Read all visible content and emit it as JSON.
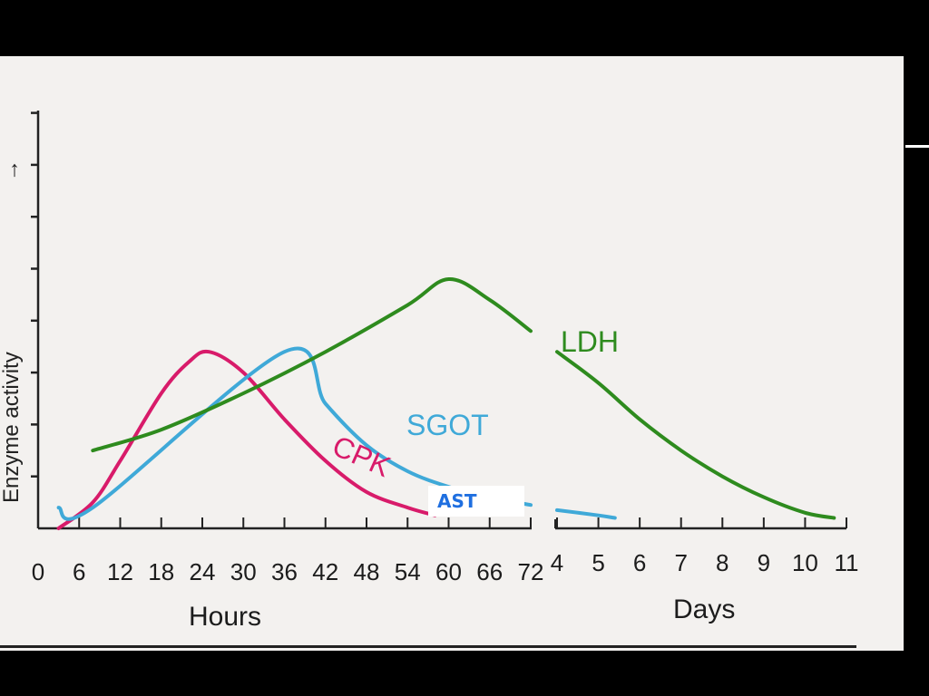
{
  "chart_data": {
    "type": "line",
    "ylabel": "Enzyme activity",
    "y_axis_arrow": "→",
    "hours_axis": {
      "label": "Hours",
      "ticks": [
        "0",
        "6",
        "12",
        "18",
        "24",
        "30",
        "36",
        "42",
        "48",
        "54",
        "60",
        "66",
        "72"
      ],
      "range": [
        0,
        72
      ]
    },
    "days_axis": {
      "label": "Days",
      "ticks": [
        "4",
        "5",
        "6",
        "7",
        "8",
        "9",
        "10",
        "11"
      ],
      "range": [
        3.5,
        11
      ]
    },
    "y_units": "relative (0–8 tick units)",
    "series": [
      {
        "name": "CPK",
        "color": "#d81b6a",
        "points": [
          {
            "axis": "hours",
            "x": 3,
            "y": 0
          },
          {
            "axis": "hours",
            "x": 8,
            "y": 0.5
          },
          {
            "axis": "hours",
            "x": 12,
            "y": 1.3
          },
          {
            "axis": "hours",
            "x": 18,
            "y": 2.6
          },
          {
            "axis": "hours",
            "x": 22,
            "y": 3.2
          },
          {
            "axis": "hours",
            "x": 25,
            "y": 3.4
          },
          {
            "axis": "hours",
            "x": 30,
            "y": 3.0
          },
          {
            "axis": "hours",
            "x": 36,
            "y": 2.1
          },
          {
            "axis": "hours",
            "x": 42,
            "y": 1.3
          },
          {
            "axis": "hours",
            "x": 48,
            "y": 0.7
          },
          {
            "axis": "hours",
            "x": 54,
            "y": 0.4
          },
          {
            "axis": "hours",
            "x": 58,
            "y": 0.25
          }
        ]
      },
      {
        "name": "SGOT",
        "color": "#3fa9d8",
        "points": [
          {
            "axis": "hours",
            "x": 3,
            "y": 0.4
          },
          {
            "axis": "hours",
            "x": 8,
            "y": 0.4
          },
          {
            "axis": "hours",
            "x": 36,
            "y": 3.4
          },
          {
            "axis": "hours",
            "x": 42,
            "y": 2.4
          },
          {
            "axis": "hours",
            "x": 48,
            "y": 1.6
          },
          {
            "axis": "hours",
            "x": 54,
            "y": 1.1
          },
          {
            "axis": "hours",
            "x": 60,
            "y": 0.8
          },
          {
            "axis": "hours",
            "x": 66,
            "y": 0.6
          },
          {
            "axis": "hours",
            "x": 72,
            "y": 0.45
          },
          {
            "axis": "days",
            "x": 4,
            "y": 0.35
          },
          {
            "axis": "days",
            "x": 5,
            "y": 0.25
          },
          {
            "axis": "days",
            "x": 5.4,
            "y": 0.2
          }
        ]
      },
      {
        "name": "LDH",
        "color": "#2e8b1e",
        "points": [
          {
            "axis": "hours",
            "x": 8,
            "y": 1.5
          },
          {
            "axis": "hours",
            "x": 18,
            "y": 1.9
          },
          {
            "axis": "hours",
            "x": 30,
            "y": 2.6
          },
          {
            "axis": "hours",
            "x": 42,
            "y": 3.4
          },
          {
            "axis": "hours",
            "x": 54,
            "y": 4.3
          },
          {
            "axis": "hours",
            "x": 60,
            "y": 4.8
          },
          {
            "axis": "hours",
            "x": 66,
            "y": 4.4
          },
          {
            "axis": "hours",
            "x": 72,
            "y": 3.8
          },
          {
            "axis": "days",
            "x": 4,
            "y": 3.4
          },
          {
            "axis": "days",
            "x": 5,
            "y": 2.8
          },
          {
            "axis": "days",
            "x": 6,
            "y": 2.1
          },
          {
            "axis": "days",
            "x": 7,
            "y": 1.5
          },
          {
            "axis": "days",
            "x": 8,
            "y": 1.0
          },
          {
            "axis": "days",
            "x": 9,
            "y": 0.6
          },
          {
            "axis": "days",
            "x": 10,
            "y": 0.3
          },
          {
            "axis": "days",
            "x": 10.7,
            "y": 0.2
          }
        ]
      }
    ],
    "annotation": {
      "text": "AST",
      "color": "#1f6fe0"
    },
    "grid": false
  }
}
